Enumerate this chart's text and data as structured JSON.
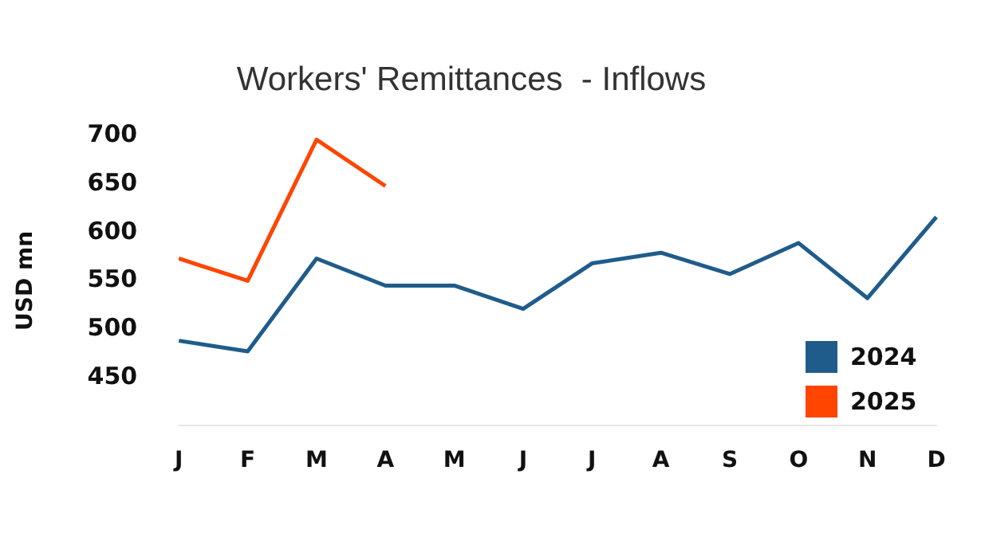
{
  "chart_data": {
    "type": "line",
    "title": "Workers' Remittances  - Inflows",
    "ylabel": "USD mn",
    "categories": [
      "J",
      "F",
      "M",
      "A",
      "M",
      "J",
      "J",
      "A",
      "S",
      "O",
      "N",
      "D"
    ],
    "series": [
      {
        "name": "2024",
        "color": "#1f5c8b",
        "values": [
          488,
          477,
          573,
          545,
          545,
          521,
          568,
          579,
          557,
          589,
          532,
          616
        ]
      },
      {
        "name": "2025",
        "color": "#ff4500",
        "values": [
          573,
          550,
          696,
          648,
          null,
          null,
          null,
          null,
          null,
          null,
          null,
          null
        ]
      }
    ],
    "ylim": [
      400,
      700
    ],
    "yticks": [
      450,
      500,
      550,
      600,
      650,
      700
    ],
    "grid": false,
    "legend": "bottom right",
    "marker": "none",
    "line_style": "solid"
  }
}
